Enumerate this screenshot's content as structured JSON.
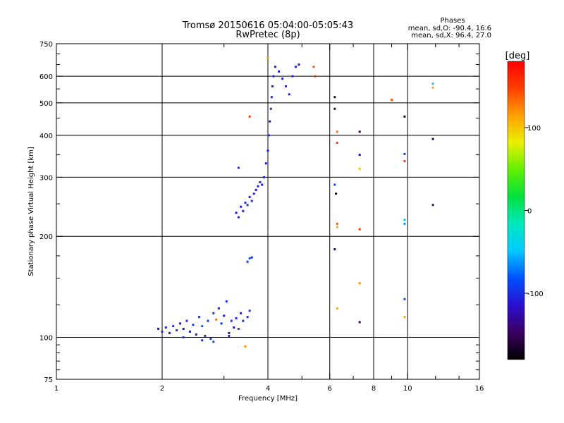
{
  "chart_data": {
    "type": "scatter",
    "title": "Tromsø 20150616 05:04:00-05:05:43",
    "subtitle": "RwPretec (8p)",
    "xlabel": "Frequency [MHz]",
    "ylabel": "Stationary phase Virtual Height [km]",
    "xscale": "log",
    "yscale": "log",
    "xlim": [
      1,
      16
    ],
    "ylim": [
      75,
      750
    ],
    "grid": true,
    "x_ticks": [
      1,
      2,
      4,
      6,
      8,
      10,
      16
    ],
    "x_minor_ticks": [
      3,
      5,
      7,
      9,
      12,
      14
    ],
    "y_ticks": [
      75,
      100,
      200,
      300,
      400,
      500,
      600,
      750
    ],
    "y_minor_ticks": [
      80,
      85,
      90,
      95,
      125,
      150,
      175,
      250,
      350,
      450,
      550,
      650,
      700
    ],
    "x_gridlines": [
      2,
      4,
      6,
      8,
      10
    ],
    "y_gridlines": [
      100,
      200,
      300,
      400,
      500,
      600
    ],
    "phase_box": {
      "heading": "Phases",
      "line1": "mean, sd,O: -90.4, 16.6",
      "line2": "mean, sd,X:  96.4, 27.0"
    },
    "colorbar": {
      "label": "[deg]",
      "range": [
        -180,
        180
      ],
      "tick_labels": [
        "100",
        "0",
        "-100"
      ],
      "tick_values": [
        100,
        0,
        -100
      ],
      "colors": [
        "#000000",
        "#3a0060",
        "#2a10d0",
        "#0050ff",
        "#00c8ff",
        "#00e8c0",
        "#00e040",
        "#60f000",
        "#e8f000",
        "#ffa000",
        "#ff4000",
        "#ff0000"
      ]
    },
    "series": [
      {
        "name": "",
        "points": [
          {
            "x": 1.95,
            "y": 106,
            "phase": -120
          },
          {
            "x": 2.0,
            "y": 104,
            "phase": -110
          },
          {
            "x": 2.05,
            "y": 107,
            "phase": -105
          },
          {
            "x": 2.1,
            "y": 103,
            "phase": -115
          },
          {
            "x": 2.15,
            "y": 108,
            "phase": -100
          },
          {
            "x": 2.2,
            "y": 105,
            "phase": -95
          },
          {
            "x": 2.25,
            "y": 110,
            "phase": -110
          },
          {
            "x": 2.3,
            "y": 106,
            "phase": -120
          },
          {
            "x": 2.35,
            "y": 112,
            "phase": -100
          },
          {
            "x": 2.4,
            "y": 104,
            "phase": -105
          },
          {
            "x": 2.45,
            "y": 109,
            "phase": -90
          },
          {
            "x": 2.5,
            "y": 102,
            "phase": -115
          },
          {
            "x": 2.55,
            "y": 115,
            "phase": -100
          },
          {
            "x": 2.6,
            "y": 108,
            "phase": -80
          },
          {
            "x": 2.65,
            "y": 101,
            "phase": -110
          },
          {
            "x": 2.7,
            "y": 112,
            "phase": -95
          },
          {
            "x": 2.75,
            "y": 99,
            "phase": -85
          },
          {
            "x": 2.8,
            "y": 118,
            "phase": -100
          },
          {
            "x": 2.85,
            "y": 113,
            "phase": 130
          },
          {
            "x": 2.9,
            "y": 122,
            "phase": -105
          },
          {
            "x": 2.95,
            "y": 110,
            "phase": -95
          },
          {
            "x": 3.0,
            "y": 116,
            "phase": -110
          },
          {
            "x": 3.05,
            "y": 128,
            "phase": -100
          },
          {
            "x": 3.1,
            "y": 103,
            "phase": -120
          },
          {
            "x": 3.15,
            "y": 112,
            "phase": -105
          },
          {
            "x": 3.2,
            "y": 107,
            "phase": -115
          },
          {
            "x": 3.25,
            "y": 114,
            "phase": -100
          },
          {
            "x": 3.3,
            "y": 106,
            "phase": -90
          },
          {
            "x": 3.35,
            "y": 118,
            "phase": -110
          },
          {
            "x": 3.4,
            "y": 112,
            "phase": -100
          },
          {
            "x": 3.45,
            "y": 94,
            "phase": 120
          },
          {
            "x": 3.5,
            "y": 115,
            "phase": -100
          },
          {
            "x": 3.55,
            "y": 120,
            "phase": -95
          },
          {
            "x": 3.55,
            "y": 172,
            "phase": -80
          },
          {
            "x": 3.5,
            "y": 168,
            "phase": -90
          },
          {
            "x": 3.6,
            "y": 173,
            "phase": -100
          },
          {
            "x": 2.3,
            "y": 100,
            "phase": -90
          },
          {
            "x": 2.6,
            "y": 98,
            "phase": -100
          },
          {
            "x": 2.8,
            "y": 97,
            "phase": -85
          },
          {
            "x": 3.1,
            "y": 101,
            "phase": -100
          },
          {
            "x": 3.25,
            "y": 235,
            "phase": -110
          },
          {
            "x": 3.3,
            "y": 228,
            "phase": -100
          },
          {
            "x": 3.35,
            "y": 245,
            "phase": -105
          },
          {
            "x": 3.4,
            "y": 238,
            "phase": -115
          },
          {
            "x": 3.45,
            "y": 252,
            "phase": -100
          },
          {
            "x": 3.5,
            "y": 248,
            "phase": -95
          },
          {
            "x": 3.55,
            "y": 262,
            "phase": -110
          },
          {
            "x": 3.6,
            "y": 255,
            "phase": -105
          },
          {
            "x": 3.65,
            "y": 268,
            "phase": -100
          },
          {
            "x": 3.7,
            "y": 275,
            "phase": -115
          },
          {
            "x": 3.75,
            "y": 282,
            "phase": -100
          },
          {
            "x": 3.8,
            "y": 290,
            "phase": -105
          },
          {
            "x": 3.85,
            "y": 285,
            "phase": -110
          },
          {
            "x": 3.9,
            "y": 300,
            "phase": -100
          },
          {
            "x": 3.95,
            "y": 330,
            "phase": -110
          },
          {
            "x": 4.0,
            "y": 360,
            "phase": -105
          },
          {
            "x": 4.02,
            "y": 400,
            "phase": -100
          },
          {
            "x": 4.05,
            "y": 440,
            "phase": -110
          },
          {
            "x": 4.08,
            "y": 480,
            "phase": -100
          },
          {
            "x": 4.1,
            "y": 520,
            "phase": -105
          },
          {
            "x": 4.12,
            "y": 560,
            "phase": -110
          },
          {
            "x": 4.15,
            "y": 600,
            "phase": -100
          },
          {
            "x": 4.2,
            "y": 640,
            "phase": -105
          },
          {
            "x": 4.3,
            "y": 620,
            "phase": -110
          },
          {
            "x": 4.4,
            "y": 590,
            "phase": -100
          },
          {
            "x": 4.5,
            "y": 560,
            "phase": -105
          },
          {
            "x": 4.6,
            "y": 530,
            "phase": -110
          },
          {
            "x": 4.7,
            "y": 600,
            "phase": -100
          },
          {
            "x": 4.8,
            "y": 640,
            "phase": -105
          },
          {
            "x": 4.9,
            "y": 650,
            "phase": -110
          },
          {
            "x": 3.3,
            "y": 320,
            "phase": -100
          },
          {
            "x": 3.55,
            "y": 455,
            "phase": 150
          },
          {
            "x": 4.0,
            "y": 680,
            "phase": 120
          },
          {
            "x": 5.4,
            "y": 640,
            "phase": 140
          },
          {
            "x": 5.45,
            "y": 600,
            "phase": 150
          },
          {
            "x": 6.2,
            "y": 520,
            "phase": -160
          },
          {
            "x": 6.2,
            "y": 480,
            "phase": -150
          },
          {
            "x": 6.3,
            "y": 410,
            "phase": 130
          },
          {
            "x": 6.3,
            "y": 380,
            "phase": 150
          },
          {
            "x": 6.2,
            "y": 285,
            "phase": -80
          },
          {
            "x": 6.25,
            "y": 268,
            "phase": -150
          },
          {
            "x": 6.3,
            "y": 218,
            "phase": 140
          },
          {
            "x": 6.3,
            "y": 213,
            "phase": 110
          },
          {
            "x": 6.2,
            "y": 183,
            "phase": -140
          },
          {
            "x": 6.3,
            "y": 122,
            "phase": 110
          },
          {
            "x": 7.3,
            "y": 410,
            "phase": -150
          },
          {
            "x": 7.3,
            "y": 350,
            "phase": -130
          },
          {
            "x": 7.3,
            "y": 318,
            "phase": 100
          },
          {
            "x": 7.3,
            "y": 210,
            "phase": 150
          },
          {
            "x": 7.3,
            "y": 145,
            "phase": 120
          },
          {
            "x": 7.3,
            "y": 111,
            "phase": -150
          },
          {
            "x": 9.0,
            "y": 510,
            "phase": 140
          },
          {
            "x": 9.8,
            "y": 455,
            "phase": -160
          },
          {
            "x": 9.8,
            "y": 352,
            "phase": -90
          },
          {
            "x": 9.8,
            "y": 335,
            "phase": 150
          },
          {
            "x": 9.8,
            "y": 224,
            "phase": -50
          },
          {
            "x": 9.8,
            "y": 218,
            "phase": -60
          },
          {
            "x": 9.8,
            "y": 130,
            "phase": -80
          },
          {
            "x": 9.8,
            "y": 115,
            "phase": 110
          },
          {
            "x": 11.8,
            "y": 570,
            "phase": -50
          },
          {
            "x": 11.8,
            "y": 555,
            "phase": 110
          },
          {
            "x": 11.8,
            "y": 390,
            "phase": -150
          },
          {
            "x": 11.8,
            "y": 248,
            "phase": -140
          }
        ]
      }
    ]
  }
}
